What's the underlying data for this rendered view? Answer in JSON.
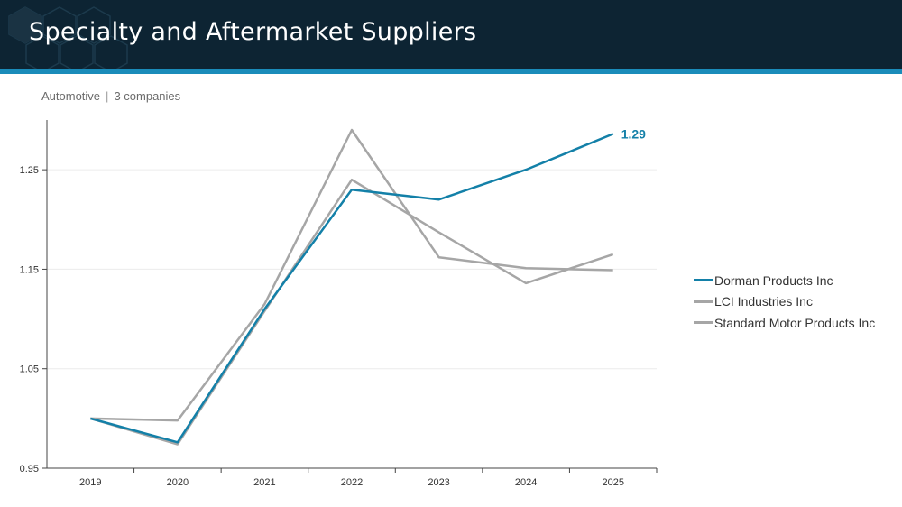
{
  "header": {
    "title": "Specialty and Aftermarket Suppliers"
  },
  "subtitle": {
    "sector": "Automotive",
    "separator": "|",
    "count": "3 companies"
  },
  "colors": {
    "header_bg": "#0d2433",
    "accent_stripe": "#1a8cba",
    "highlight_series": "#1380a8",
    "peer_series": "#a6a6a6"
  },
  "chart_data": {
    "type": "line",
    "x": [
      "2019",
      "2020",
      "2021",
      "2022",
      "2023",
      "2024",
      "2025"
    ],
    "ylim": [
      0.95,
      1.3
    ],
    "yticks": [
      "0.95",
      "1.05",
      "1.15",
      "1.25"
    ],
    "grid": "horizontal",
    "legend_position": "right",
    "series": [
      {
        "name": "Dorman Products Inc",
        "color": "#1380a8",
        "values": [
          1.0,
          0.976,
          1.11,
          1.23,
          1.22,
          1.25,
          1.286
        ],
        "end_label": "1.29"
      },
      {
        "name": "LCI Industries Inc",
        "color": "#a6a6a6",
        "values": [
          1.0,
          0.998,
          1.115,
          1.29,
          1.162,
          1.151,
          1.149
        ]
      },
      {
        "name": "Standard Motor Products Inc",
        "color": "#a6a6a6",
        "values": [
          1.0,
          0.974,
          1.108,
          1.24,
          1.187,
          1.136,
          1.165
        ]
      }
    ]
  }
}
